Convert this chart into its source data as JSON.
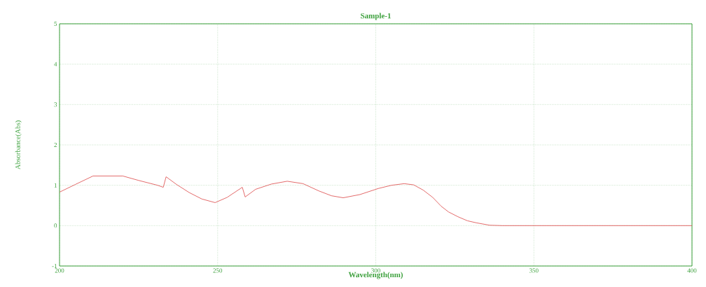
{
  "chart_data": {
    "type": "line",
    "title": "Sample-1",
    "xlabel": "Wavelength(nm)",
    "ylabel": "Absorbance(Abs)",
    "x": [
      200,
      205,
      210.6,
      215,
      220,
      225,
      231,
      232.8,
      233.7,
      237,
      241,
      245,
      249.2,
      253,
      257.8,
      258.7,
      262,
      267,
      272,
      277,
      282,
      286,
      289.7,
      295,
      300.8,
      305,
      309,
      312,
      315,
      318,
      320.7,
      323,
      326,
      329,
      331.8,
      336,
      340,
      350,
      360,
      370,
      380,
      390,
      400
    ],
    "series": [
      {
        "color": "#e05a5a",
        "values": [
          0.83,
          1.02,
          1.23,
          1.23,
          1.23,
          1.12,
          1.0,
          0.95,
          1.21,
          1.02,
          0.82,
          0.66,
          0.57,
          0.7,
          0.95,
          0.71,
          0.9,
          1.03,
          1.1,
          1.04,
          0.86,
          0.74,
          0.69,
          0.77,
          0.92,
          1.0,
          1.04,
          1.01,
          0.88,
          0.7,
          0.48,
          0.34,
          0.22,
          0.12,
          0.07,
          0.01,
          0.0,
          0.0,
          0.0,
          0.0,
          0.0,
          0.0,
          0.0
        ]
      }
    ],
    "xlim": [
      200,
      400
    ],
    "ylim": [
      -1,
      5
    ],
    "xticks": [
      200,
      250,
      300,
      350,
      400
    ],
    "yticks": [
      -1,
      0,
      1,
      2,
      3,
      4,
      5
    ],
    "grid": true,
    "marker": "none",
    "line_style": "solid"
  }
}
